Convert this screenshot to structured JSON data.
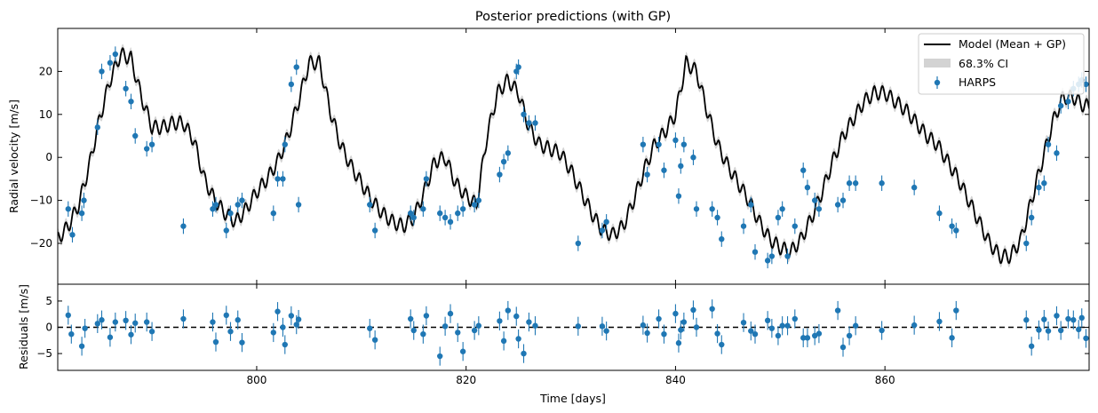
{
  "chart_data": [
    {
      "type": "line",
      "title": "Posterior predictions (with GP)",
      "xlabel": "",
      "ylabel": "Radial velocity [m/s]",
      "xlim": [
        781.0,
        879.5
      ],
      "ylim": [
        -29.5,
        30.0
      ],
      "yticks": [
        -20,
        -10,
        0,
        10,
        20
      ],
      "legend": {
        "position": "top-right",
        "entries": [
          "Model (Mean + GP)",
          "68.3% CI",
          "HARPS"
        ]
      },
      "series": [
        {
          "name": "Model (Mean + GP)",
          "kind": "line",
          "color": "#000000",
          "x": [
            781,
            782,
            783,
            784,
            785,
            786,
            787,
            788,
            789,
            790,
            791,
            792,
            793,
            794,
            795,
            796,
            797,
            798,
            799,
            800,
            801,
            802,
            803,
            804,
            805,
            806,
            807,
            808,
            809,
            810,
            811,
            812,
            813,
            814,
            815,
            816,
            817,
            818,
            819,
            820,
            821,
            822,
            823,
            824,
            825,
            826,
            827,
            828,
            829,
            830,
            831,
            832,
            833,
            834,
            835,
            836,
            837,
            838,
            839,
            840,
            841,
            842,
            843,
            844,
            845,
            846,
            847,
            848,
            849,
            850,
            851,
            852,
            853,
            854,
            855,
            856,
            857,
            858,
            859,
            860,
            861,
            862,
            863,
            864,
            865,
            866,
            867,
            868,
            869,
            870,
            871,
            872,
            873,
            874,
            875,
            876,
            877,
            878,
            879
          ],
          "y": [
            -19,
            -16,
            -11,
            -2,
            9,
            18,
            24,
            23,
            14,
            7,
            7,
            8,
            8,
            4,
            -5,
            -10,
            -13,
            -15,
            -12,
            -8,
            -5,
            -1,
            5,
            13,
            22,
            22,
            11,
            3,
            -2,
            -6,
            -10,
            -13,
            -15,
            -16,
            -14,
            -8,
            -1,
            0,
            -6,
            -9,
            -11,
            5,
            15,
            18,
            15,
            7,
            3,
            2,
            1,
            -3,
            -8,
            -13,
            -17,
            -18,
            -16,
            -10,
            -3,
            3,
            6,
            10,
            22,
            20,
            11,
            3,
            -2,
            -6,
            -10,
            -15,
            -19,
            -21,
            -22,
            -19,
            -14,
            -8,
            -1,
            5,
            9,
            13,
            15,
            15,
            13,
            11,
            8,
            5,
            3,
            -1,
            -5,
            -10,
            -15,
            -20,
            -23,
            -23,
            -19,
            -10,
            -1,
            8,
            14,
            14,
            12
          ]
        },
        {
          "name": "68.3% CI",
          "kind": "band",
          "color": "#d3d3d3",
          "half_width": 1.0
        },
        {
          "name": "HARPS",
          "kind": "errorbar",
          "color": "#1f77b4",
          "x": [
            782,
            782.4,
            783.3,
            783.5,
            784.8,
            785.2,
            786.0,
            786.5,
            787.5,
            788.0,
            788.4,
            789.5,
            790.0,
            793.0,
            795.8,
            796.1,
            797.1,
            797.5,
            798.2,
            798.6,
            801.6,
            802.0,
            802.5,
            802.7,
            803.3,
            803.8,
            804.0,
            810.8,
            811.3,
            814.7,
            815.0,
            815.9,
            816.2,
            817.5,
            818.0,
            818.5,
            819.2,
            819.7,
            820.8,
            821.2,
            823.2,
            823.6,
            824.0,
            824.8,
            825.0,
            825.5,
            826.0,
            826.6,
            830.7,
            833.0,
            833.4,
            836.9,
            837.3,
            838.4,
            838.9,
            840.0,
            840.3,
            840.5,
            840.8,
            841.7,
            842.0,
            843.5,
            844.0,
            844.4,
            846.5,
            847.2,
            847.6,
            848.8,
            849.2,
            849.8,
            850.2,
            850.7,
            851.4,
            852.2,
            852.6,
            853.3,
            853.7,
            855.5,
            856.0,
            856.6,
            857.2,
            859.7,
            862.8,
            865.2,
            866.4,
            866.8,
            873.5,
            874.0,
            874.7,
            875.2,
            875.6,
            876.4,
            876.8,
            877.5,
            878.0,
            878.5,
            878.8,
            879.2
          ],
          "y": [
            -12,
            -18,
            -13,
            -10,
            7,
            20,
            22,
            24,
            16,
            13,
            5,
            2,
            3,
            -16,
            -12,
            -11,
            -17,
            -13,
            -11,
            -10,
            -13,
            -5,
            -5,
            3,
            17,
            21,
            -11,
            -11,
            -17,
            -13,
            -14,
            -12,
            -5,
            -13,
            -14,
            -15,
            -13,
            -12,
            -11,
            -10,
            -4,
            -1,
            1,
            20,
            21,
            10,
            8,
            8,
            -20,
            -17,
            -15,
            3,
            -4,
            3,
            -3,
            4,
            -9,
            -2,
            3,
            0,
            -12,
            -12,
            -14,
            -19,
            -16,
            -11,
            -22,
            -24,
            -23,
            -14,
            -12,
            -23,
            -16,
            -3,
            -7,
            -10,
            -12,
            -11,
            -10,
            -6,
            -6,
            -6,
            -7,
            -13,
            -16,
            -17,
            -20,
            -14,
            -7,
            -6,
            3,
            1,
            12,
            13,
            16,
            17,
            18,
            17
          ],
          "yerr": 1.8
        }
      ]
    },
    {
      "type": "scatter",
      "title": "",
      "xlabel": "Time [days]",
      "ylabel": "Residuals [m/s]",
      "xlim": [
        781.0,
        879.5
      ],
      "ylim": [
        -8.2,
        8.2
      ],
      "yticks": [
        -5,
        0,
        5
      ],
      "xticks": [
        800,
        820,
        840,
        860
      ],
      "zero_line": {
        "y": 0,
        "style": "dashed",
        "color": "#000000"
      },
      "series": [
        {
          "name": "HARPS",
          "kind": "errorbar",
          "color": "#1f77b4",
          "x": [
            782,
            782.3,
            783.3,
            783.6,
            784.8,
            785.2,
            786.0,
            786.5,
            787.5,
            788.0,
            788.4,
            789.5,
            790.0,
            793.0,
            795.8,
            796.1,
            797.1,
            797.5,
            798.2,
            798.6,
            801.6,
            802.0,
            802.5,
            802.7,
            803.3,
            803.8,
            804.0,
            810.8,
            811.3,
            814.7,
            815.0,
            815.9,
            816.2,
            817.5,
            818.0,
            818.5,
            819.2,
            819.7,
            820.8,
            821.2,
            823.2,
            823.6,
            824.0,
            824.8,
            825.0,
            825.5,
            826.0,
            826.6,
            830.7,
            833.0,
            833.4,
            836.9,
            837.3,
            838.4,
            838.9,
            840.0,
            840.3,
            840.5,
            840.8,
            841.7,
            842.0,
            843.5,
            844.0,
            844.4,
            846.5,
            847.2,
            847.6,
            848.8,
            849.2,
            849.8,
            850.2,
            850.7,
            851.4,
            852.2,
            852.6,
            853.3,
            853.7,
            855.5,
            856.0,
            856.6,
            857.2,
            859.7,
            862.8,
            865.2,
            866.4,
            866.8,
            873.5,
            874.0,
            874.7,
            875.2,
            875.6,
            876.4,
            876.8,
            877.5,
            878.0,
            878.5,
            878.8,
            879.2
          ],
          "y": [
            2.3,
            -1.3,
            -3.6,
            -0.2,
            0.7,
            1.4,
            -1.9,
            1.0,
            1.3,
            -1.4,
            0.8,
            1.0,
            -0.8,
            1.6,
            1.0,
            -2.8,
            2.3,
            -0.8,
            1.4,
            -2.9,
            -1.0,
            3.0,
            0.0,
            -3.3,
            2.2,
            0.5,
            1.5,
            -0.2,
            -2.4,
            1.6,
            -0.6,
            -1.3,
            2.2,
            -5.5,
            0.2,
            2.6,
            -1.0,
            -4.6,
            -0.6,
            0.3,
            1.2,
            -2.6,
            3.2,
            2.1,
            -2.2,
            -5.0,
            1.0,
            0.3,
            0.2,
            0.2,
            -0.7,
            0.4,
            -1.1,
            1.6,
            -1.3,
            2.6,
            -3.0,
            -0.5,
            1.0,
            3.3,
            0.0,
            3.5,
            -1.2,
            -3.3,
            0.9,
            -0.7,
            -1.3,
            1.3,
            -0.2,
            -1.6,
            0.3,
            0.3,
            1.6,
            -2.0,
            -2.0,
            -1.6,
            -1.2,
            3.2,
            -3.8,
            -1.6,
            0.3,
            -0.6,
            0.4,
            1.1,
            -2.0,
            3.2,
            1.4,
            -3.6,
            -0.5,
            1.5,
            -0.7,
            2.2,
            -0.6,
            1.6,
            1.4,
            -0.4,
            1.8,
            -2.1
          ],
          "yerr": 1.8
        }
      ]
    }
  ]
}
